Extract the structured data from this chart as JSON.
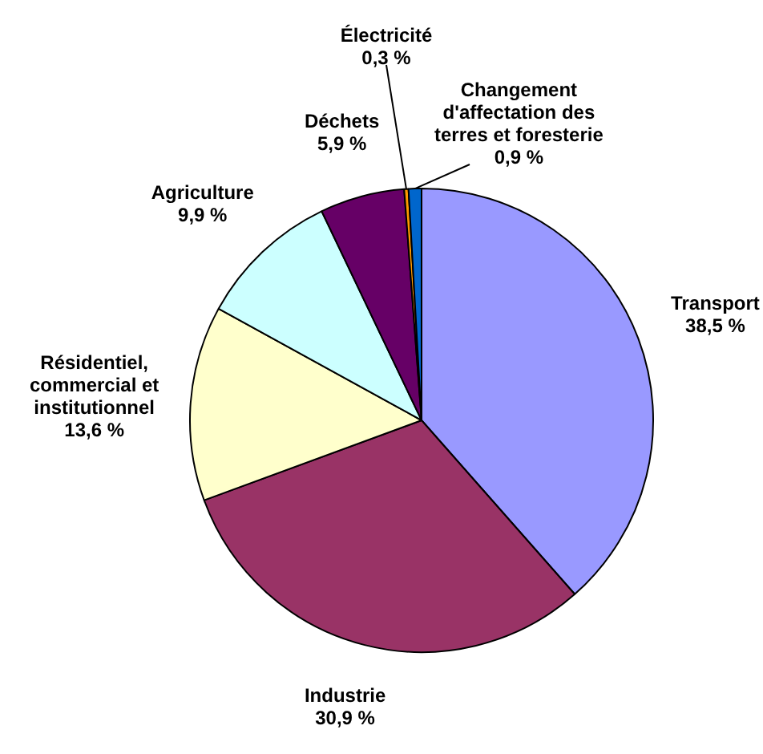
{
  "chart_data": {
    "type": "pie",
    "categories": [
      "Transport",
      "Industrie",
      "Résidentiel, commercial et institutionnel",
      "Agriculture",
      "Déchets",
      "Électricité",
      "Changement d'affectation des terres et foresterie"
    ],
    "values": [
      38.5,
      30.9,
      13.6,
      9.9,
      5.9,
      0.3,
      0.9
    ],
    "value_labels": [
      "38,5 %",
      "30,9 %",
      "13,6 %",
      "9,9 %",
      "5,9 %",
      "0,3 %",
      "0,9 %"
    ],
    "colors": [
      "#9999ff",
      "#993366",
      "#ffffcc",
      "#ccffff",
      "#660066",
      "#ff9900",
      "#0066cc"
    ],
    "legend": false
  }
}
